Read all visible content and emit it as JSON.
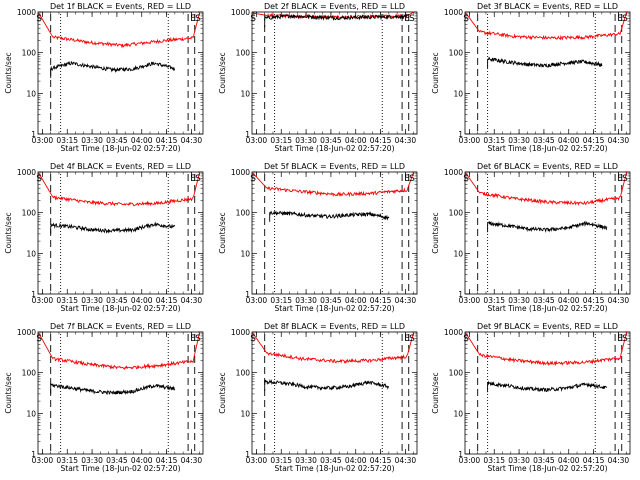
{
  "chart_data": {
    "type": "line",
    "layout": "3x3 grid",
    "xlabel": "Start Time (18-Jun-02 02:57:20)",
    "ylabel": "Counts/sec",
    "y_scale": "log",
    "ylim": [
      1,
      1000
    ],
    "y_ticks": [
      1,
      10,
      100,
      1000
    ],
    "y_tick_labels": [
      "1",
      "10",
      "100",
      "1000"
    ],
    "x_range": [
      "02:57:20",
      "04:37:00"
    ],
    "x_ticks": [
      "03:00",
      "03:15",
      "03:30",
      "03:45",
      "04:00",
      "04:15",
      "04:30"
    ],
    "series_colors": {
      "events": "#000000",
      "lld": "#ff0000"
    },
    "marker_labels": {
      "start": "S",
      "end": "E",
      "stop": "S"
    },
    "panels": [
      {
        "title": "Det 1f BLACK = Events, RED = LLD",
        "markers": {
          "S": "02:58",
          "E": "04:31",
          "S2": "04:34"
        },
        "dashed_lines": [
          "03:05",
          "04:28",
          "04:32"
        ],
        "dotted_lines": [
          "03:11",
          "04:16"
        ],
        "lld": {
          "start": 950,
          "plateau": [
            240,
            180,
            150,
            190,
            230
          ],
          "x_end": "04:35",
          "end": 1000
        },
        "events": {
          "x_start": "03:05",
          "x_end": "04:20",
          "values": [
            40,
            55,
            45,
            38,
            40,
            55,
            40
          ]
        }
      },
      {
        "title": "Det 2f BLACK = Events, RED = LLD",
        "markers": {
          "S": "02:58",
          "E": "04:31",
          "S2": "04:34"
        },
        "dashed_lines": [
          "03:05",
          "04:28",
          "04:32"
        ],
        "dotted_lines": [
          "03:11",
          "04:16"
        ],
        "lld": {
          "start": 950,
          "plateau": [
            820,
            790,
            740,
            770,
            800
          ],
          "x_end": "04:35",
          "end": 1000
        },
        "events": {
          "x_start": "03:05",
          "x_end": "04:31",
          "values": [
            700,
            800,
            760,
            720,
            740,
            760,
            780
          ]
        }
      },
      {
        "title": "Det 3f BLACK = Events, RED = LLD",
        "markers": {
          "S": "02:58",
          "E": "04:31",
          "S2": "04:34"
        },
        "dashed_lines": [
          "03:05",
          "04:28",
          "04:32"
        ],
        "dotted_lines": [
          "03:11",
          "04:16"
        ],
        "lld": {
          "start": 950,
          "plateau": [
            320,
            250,
            230,
            240,
            290
          ],
          "x_end": "04:35",
          "end": 1000
        },
        "events": {
          "x_start": "03:11",
          "x_end": "04:20",
          "values": [
            70,
            60,
            52,
            48,
            55,
            60,
            50
          ]
        }
      },
      {
        "title": "Det 4f BLACK = Events, RED = LLD",
        "markers": {
          "S": "02:58",
          "E": "04:31",
          "S2": "04:34"
        },
        "dashed_lines": [
          "03:05",
          "04:28",
          "04:32"
        ],
        "dotted_lines": [
          "03:11",
          "04:16"
        ],
        "lld": {
          "start": 950,
          "plateau": [
            240,
            180,
            160,
            170,
            220
          ],
          "x_end": "04:35",
          "end": 1000
        },
        "events": {
          "x_start": "03:05",
          "x_end": "04:20",
          "values": [
            50,
            45,
            38,
            36,
            38,
            52,
            44
          ]
        }
      },
      {
        "title": "Det 5f BLACK = Events, RED = LLD",
        "markers": {
          "S": "02:58",
          "E": "04:31",
          "S2": "04:34"
        },
        "dashed_lines": [
          "03:05",
          "04:28",
          "04:32"
        ],
        "dotted_lines": [
          "03:11",
          "04:16"
        ],
        "lld": {
          "start": 950,
          "plateau": [
            400,
            330,
            280,
            300,
            360
          ],
          "x_end": "04:35",
          "end": 1000
        },
        "events": {
          "x_start": "03:08",
          "x_end": "04:20",
          "values": [
            100,
            95,
            85,
            80,
            88,
            92,
            75
          ]
        }
      },
      {
        "title": "Det 6f BLACK = Events, RED = LLD",
        "markers": {
          "S": "02:58",
          "E": "04:31",
          "S2": "04:34"
        },
        "dashed_lines": [
          "03:05",
          "04:28",
          "04:32"
        ],
        "dotted_lines": [
          "03:11",
          "04:16"
        ],
        "lld": {
          "start": 950,
          "plateau": [
            300,
            220,
            180,
            170,
            230
          ],
          "x_end": "04:35",
          "end": 1000
        },
        "events": {
          "x_start": "03:11",
          "x_end": "04:23",
          "values": [
            55,
            48,
            40,
            38,
            42,
            55,
            42
          ]
        }
      },
      {
        "title": "Det 7f BLACK = Events, RED = LLD",
        "markers": {
          "S": "02:58",
          "E": "04:31",
          "S2": "04:34"
        },
        "dashed_lines": [
          "03:05",
          "04:28",
          "04:32"
        ],
        "dotted_lines": [
          "03:11",
          "04:16"
        ],
        "lld": {
          "start": 950,
          "plateau": [
            220,
            160,
            130,
            150,
            190
          ],
          "x_end": "04:35",
          "end": 1000
        },
        "events": {
          "x_start": "03:05",
          "x_end": "04:20",
          "values": [
            50,
            42,
            35,
            32,
            35,
            48,
            40
          ]
        }
      },
      {
        "title": "Det 8f BLACK = Events, RED = LLD",
        "markers": {
          "S": "02:58",
          "E": "04:31",
          "S2": "04:34"
        },
        "dashed_lines": [
          "03:05",
          "04:28",
          "04:32"
        ],
        "dotted_lines": [
          "03:11",
          "04:16"
        ],
        "lld": {
          "start": 950,
          "plateau": [
            300,
            220,
            190,
            200,
            250
          ],
          "x_end": "04:35",
          "end": 1000
        },
        "events": {
          "x_start": "03:05",
          "x_end": "04:20",
          "values": [
            60,
            55,
            45,
            42,
            45,
            58,
            45
          ]
        }
      },
      {
        "title": "Det 9f BLACK = Events, RED = LLD",
        "markers": {
          "S": "02:58",
          "E": "04:31",
          "S2": "04:34"
        },
        "dashed_lines": [
          "03:05",
          "04:28",
          "04:32"
        ],
        "dotted_lines": [
          "03:11",
          "04:16"
        ],
        "lld": {
          "start": 950,
          "plateau": [
            270,
            200,
            170,
            180,
            230
          ],
          "x_end": "04:35",
          "end": 1000
        },
        "events": {
          "x_start": "03:11",
          "x_end": "04:23",
          "values": [
            55,
            48,
            40,
            38,
            42,
            52,
            42
          ]
        }
      }
    ]
  }
}
